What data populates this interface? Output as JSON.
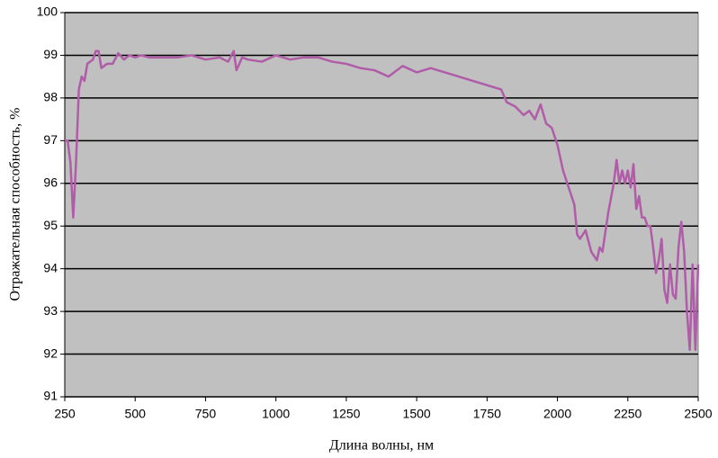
{
  "chart_data": {
    "type": "line",
    "xlabel": "Длина волны, нм",
    "ylabel": "Отражательная способность, %",
    "x": [
      250,
      260,
      270,
      280,
      290,
      300,
      310,
      320,
      330,
      340,
      350,
      360,
      370,
      380,
      400,
      420,
      440,
      460,
      480,
      500,
      520,
      550,
      600,
      650,
      700,
      750,
      800,
      830,
      850,
      860,
      880,
      900,
      950,
      1000,
      1050,
      1100,
      1150,
      1200,
      1250,
      1300,
      1350,
      1400,
      1450,
      1500,
      1550,
      1600,
      1650,
      1700,
      1750,
      1800,
      1820,
      1850,
      1880,
      1900,
      1920,
      1940,
      1960,
      1980,
      2000,
      2020,
      2040,
      2060,
      2070,
      2080,
      2100,
      2120,
      2140,
      2150,
      2160,
      2180,
      2200,
      2210,
      2220,
      2230,
      2240,
      2250,
      2260,
      2270,
      2280,
      2290,
      2300,
      2310,
      2320,
      2330,
      2340,
      2350,
      2360,
      2370,
      2380,
      2390,
      2400,
      2410,
      2420,
      2430,
      2440,
      2450,
      2460,
      2470,
      2480,
      2490,
      2500
    ],
    "values": [
      97.0,
      97.0,
      96.5,
      95.2,
      96.5,
      98.2,
      98.5,
      98.4,
      98.8,
      98.85,
      98.9,
      99.1,
      99.1,
      98.7,
      98.8,
      98.8,
      99.05,
      98.9,
      99.0,
      98.95,
      99.0,
      98.95,
      98.95,
      98.95,
      99.0,
      98.9,
      98.95,
      98.85,
      99.1,
      98.65,
      98.95,
      98.9,
      98.85,
      99.0,
      98.9,
      98.95,
      98.95,
      98.85,
      98.8,
      98.7,
      98.65,
      98.5,
      98.75,
      98.6,
      98.7,
      98.6,
      98.5,
      98.4,
      98.3,
      98.2,
      97.9,
      97.8,
      97.6,
      97.7,
      97.5,
      97.85,
      97.4,
      97.3,
      96.9,
      96.3,
      95.9,
      95.5,
      94.8,
      94.7,
      94.9,
      94.4,
      94.2,
      94.5,
      94.4,
      95.3,
      96.0,
      96.55,
      96.0,
      96.3,
      96.0,
      96.3,
      95.9,
      96.45,
      95.4,
      95.7,
      95.2,
      95.2,
      95.0,
      95.0,
      94.5,
      93.9,
      94.2,
      94.7,
      93.5,
      93.2,
      94.1,
      93.4,
      93.3,
      94.5,
      95.1,
      94.4,
      93.0,
      92.1,
      94.1,
      92.1,
      94.1
    ],
    "color": "#b05ca8",
    "xlim": [
      250,
      2500
    ],
    "xticks": [
      250,
      500,
      750,
      1000,
      1250,
      1500,
      1750,
      2000,
      2250,
      2500
    ],
    "ylim": [
      91,
      100
    ],
    "yticks": [
      91,
      92,
      93,
      94,
      95,
      96,
      97,
      98,
      99,
      100
    ],
    "grid": true
  }
}
